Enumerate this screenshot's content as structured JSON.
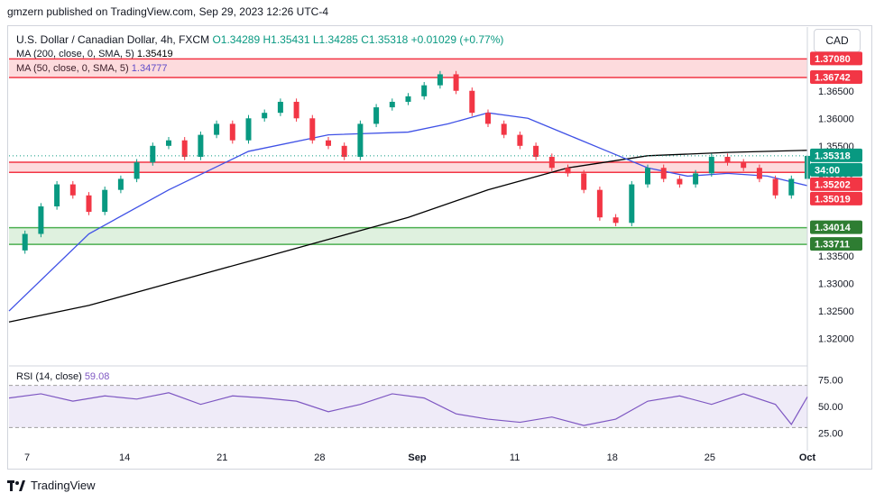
{
  "header": {
    "published_by": "gmzern published on TradingView.com, Sep 29, 2023 12:26 UTC-4"
  },
  "symbol": {
    "name": "U.S. Dollar / Canadian Dollar, 4h, FXCM",
    "ohlc": "O1.34289  H1.35431  L1.34285  C1.35318  +0.01029 (+0.77%)"
  },
  "indicators": {
    "ma200_label": "MA (200, close, 0, SMA, 5)",
    "ma200_value": "1.35419",
    "ma50_label": "MA (50, close, 0, SMA, 5)",
    "ma50_value": "1.34777",
    "rsi_label": "RSI (14, close)",
    "rsi_value": "59.08"
  },
  "currency_button": "CAD",
  "footer": {
    "brand": "TradingView"
  },
  "colors": {
    "up": "#089981",
    "down": "#f23645",
    "ma200": "#000000",
    "ma50": "#3f51e6",
    "rsi": "#7e57c2",
    "resistance": "#f23645",
    "support": "#4caf50"
  },
  "chart_data": {
    "type": "line",
    "title": "U.S. Dollar / Canadian Dollar, 4h, FXCM",
    "x_tick_labels": [
      "7",
      "14",
      "21",
      "28",
      "Sep",
      "11",
      "18",
      "25",
      "Oct"
    ],
    "y_tick_labels": [
      "1.36500",
      "1.36000",
      "1.35500",
      "1.35000",
      "1.34500",
      "1.34000",
      "1.33500",
      "1.33000",
      "1.32500",
      "1.32000"
    ],
    "ylim": [
      1.316,
      1.372
    ],
    "price_badges": [
      {
        "label": "1.37080",
        "value": 1.3708,
        "color": "#f23645"
      },
      {
        "label": "1.36742",
        "value": 1.36742,
        "color": "#f23645"
      },
      {
        "label": "1.35318",
        "value": 1.35318,
        "color": "#089981"
      },
      {
        "label": "34:00",
        "value": 1.3515,
        "color": "#089981"
      },
      {
        "label": "1.35202",
        "value": 1.35202,
        "color": "#f23645"
      },
      {
        "label": "1.35019",
        "value": 1.35019,
        "color": "#f23645"
      },
      {
        "label": "1.34014",
        "value": 1.34014,
        "color": "#2e7d32"
      },
      {
        "label": "1.33711",
        "value": 1.33711,
        "color": "#2e7d32"
      }
    ],
    "zones": [
      {
        "name": "resistance-top",
        "from": 1.36742,
        "to": 1.3708,
        "color": "#f23645"
      },
      {
        "name": "resistance-mid",
        "from": 1.35019,
        "to": 1.35202,
        "color": "#f23645"
      },
      {
        "name": "support",
        "from": 1.33711,
        "to": 1.34014,
        "color": "#4caf50"
      }
    ],
    "price_series": {
      "name": "USDCAD close",
      "x": [
        0,
        2,
        4,
        6,
        8,
        10,
        12,
        14,
        16,
        18,
        20,
        22,
        24,
        26,
        28,
        30,
        32,
        34,
        36,
        38,
        40,
        42,
        44,
        46,
        48,
        50,
        52,
        54,
        56,
        58,
        60,
        62,
        64,
        66,
        68,
        70,
        72,
        74,
        76,
        78,
        80,
        82,
        84,
        86,
        88,
        90,
        92,
        94,
        96,
        98,
        100
      ],
      "values": [
        1.336,
        1.339,
        1.344,
        1.348,
        1.346,
        1.343,
        1.347,
        1.349,
        1.352,
        1.355,
        1.356,
        1.353,
        1.357,
        1.359,
        1.356,
        1.36,
        1.361,
        1.363,
        1.36,
        1.356,
        1.355,
        1.353,
        1.359,
        1.362,
        1.363,
        1.364,
        1.366,
        1.368,
        1.365,
        1.361,
        1.359,
        1.357,
        1.355,
        1.353,
        1.351,
        1.35,
        1.347,
        1.342,
        1.341,
        1.348,
        1.351,
        1.349,
        1.348,
        1.35,
        1.353,
        1.352,
        1.351,
        1.349,
        1.346,
        1.349,
        1.35318
      ]
    },
    "ma200_series": {
      "name": "MA 200",
      "x": [
        0,
        10,
        20,
        30,
        40,
        50,
        60,
        70,
        80,
        90,
        100
      ],
      "values": [
        1.323,
        1.326,
        1.33,
        1.334,
        1.338,
        1.342,
        1.347,
        1.351,
        1.3532,
        1.3538,
        1.35419
      ]
    },
    "ma50_series": {
      "name": "MA 50",
      "x": [
        0,
        10,
        20,
        30,
        40,
        50,
        55,
        60,
        65,
        70,
        75,
        80,
        85,
        90,
        95,
        100
      ],
      "values": [
        1.325,
        1.339,
        1.347,
        1.354,
        1.357,
        1.3575,
        1.359,
        1.361,
        1.36,
        1.357,
        1.354,
        1.351,
        1.3495,
        1.35,
        1.3495,
        1.34777
      ]
    },
    "rsi": {
      "y_tick_labels": [
        "75.00",
        "50.00",
        "25.00"
      ],
      "ylim": [
        15,
        85
      ],
      "levels": [
        70,
        30
      ],
      "x": [
        0,
        4,
        8,
        12,
        16,
        20,
        24,
        28,
        32,
        36,
        40,
        44,
        48,
        52,
        56,
        60,
        64,
        68,
        72,
        76,
        80,
        84,
        88,
        92,
        96,
        98,
        100
      ],
      "values": [
        58,
        62,
        55,
        60,
        57,
        63,
        52,
        60,
        58,
        55,
        45,
        52,
        62,
        58,
        43,
        38,
        35,
        40,
        32,
        38,
        55,
        60,
        52,
        62,
        52,
        33,
        59.08
      ]
    }
  }
}
